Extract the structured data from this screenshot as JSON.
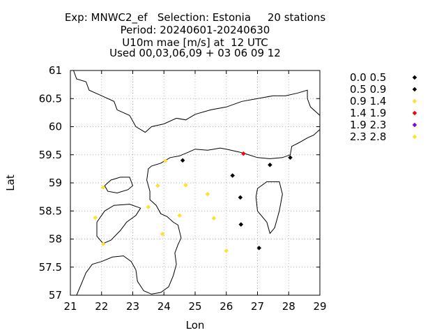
{
  "chart_data": {
    "type": "scatter",
    "title_lines": [
      "Exp: MNWC2_ef   Selection: Estonia     20 stations",
      "Period: 20240601-20240630",
      "U10m mae [m/s] at  12 UTC",
      "Used 00,03,06,09 + 03 06 09 12"
    ],
    "xlabel": "Lon",
    "ylabel": "Lat",
    "xlim": [
      21,
      29
    ],
    "ylim": [
      57,
      61
    ],
    "x_ticks": [
      "21",
      "22",
      "23",
      "24",
      "25",
      "26",
      "27",
      "28",
      "29"
    ],
    "y_ticks": [
      "57",
      "57.5",
      "58",
      "58.5",
      "59",
      "59.5",
      "60",
      "60.5",
      "61"
    ],
    "grid": true,
    "legend_position": "right",
    "legend": [
      {
        "label": "0.0 0.5",
        "color": "#000000"
      },
      {
        "label": "0.5 0.9",
        "color": "#000000"
      },
      {
        "label": "0.9 1.4",
        "color": "#ffe033"
      },
      {
        "label": "1.4 1.9",
        "color": "#ff0000"
      },
      {
        "label": "1.9 2.3",
        "color": "#9400d3"
      },
      {
        "label": "2.3 2.8",
        "color": "#ffe033"
      }
    ],
    "points": [
      {
        "x": 24.6,
        "y": 59.4,
        "cls": 1
      },
      {
        "x": 26.2,
        "y": 59.13,
        "cls": 1
      },
      {
        "x": 27.4,
        "y": 59.32,
        "cls": 1
      },
      {
        "x": 28.05,
        "y": 59.45,
        "cls": 1
      },
      {
        "x": 26.45,
        "y": 58.74,
        "cls": 1
      },
      {
        "x": 26.47,
        "y": 58.26,
        "cls": 1
      },
      {
        "x": 27.05,
        "y": 57.84,
        "cls": 1
      },
      {
        "x": 26.55,
        "y": 59.52,
        "cls": 3
      },
      {
        "x": 24.05,
        "y": 59.39,
        "cls": 2
      },
      {
        "x": 23.8,
        "y": 58.95,
        "cls": 2
      },
      {
        "x": 24.7,
        "y": 58.96,
        "cls": 2
      },
      {
        "x": 22.05,
        "y": 58.92,
        "cls": 2
      },
      {
        "x": 23.5,
        "y": 58.57,
        "cls": 2
      },
      {
        "x": 24.5,
        "y": 58.42,
        "cls": 2
      },
      {
        "x": 25.4,
        "y": 58.8,
        "cls": 2
      },
      {
        "x": 25.6,
        "y": 58.37,
        "cls": 2
      },
      {
        "x": 21.8,
        "y": 58.38,
        "cls": 2
      },
      {
        "x": 23.95,
        "y": 58.09,
        "cls": 2
      },
      {
        "x": 22.05,
        "y": 57.91,
        "cls": 2
      },
      {
        "x": 26.0,
        "y": 57.79,
        "cls": 2
      }
    ],
    "coastline": [
      [
        [
          21.1,
          61.0
        ],
        [
          21.2,
          60.85
        ],
        [
          21.5,
          60.8
        ],
        [
          21.6,
          60.65
        ],
        [
          22.0,
          60.55
        ],
        [
          22.4,
          60.45
        ],
        [
          22.5,
          60.3
        ],
        [
          22.9,
          60.2
        ],
        [
          23.1,
          60.0
        ],
        [
          23.4,
          59.9
        ],
        [
          23.6,
          60.0
        ],
        [
          24.0,
          60.05
        ],
        [
          24.4,
          60.15
        ],
        [
          24.7,
          60.12
        ],
        [
          25.0,
          60.22
        ],
        [
          25.5,
          60.3
        ],
        [
          26.0,
          60.35
        ],
        [
          26.5,
          60.45
        ],
        [
          27.0,
          60.5
        ],
        [
          27.5,
          60.55
        ],
        [
          27.9,
          60.55
        ],
        [
          28.3,
          60.6
        ],
        [
          28.6,
          60.65
        ],
        [
          28.6,
          60.5
        ],
        [
          28.7,
          60.35
        ],
        [
          29.0,
          60.2
        ]
      ],
      [
        [
          29.0,
          59.95
        ],
        [
          28.8,
          59.85
        ],
        [
          28.6,
          59.8
        ],
        [
          28.35,
          59.72
        ],
        [
          28.1,
          59.65
        ],
        [
          28.05,
          59.5
        ],
        [
          27.8,
          59.45
        ],
        [
          27.4,
          59.43
        ],
        [
          27.0,
          59.45
        ],
        [
          26.6,
          59.52
        ],
        [
          26.4,
          59.55
        ],
        [
          26.0,
          59.6
        ],
        [
          25.8,
          59.62
        ],
        [
          25.6,
          59.6
        ],
        [
          25.4,
          59.58
        ],
        [
          25.0,
          59.6
        ],
        [
          24.8,
          59.55
        ],
        [
          24.5,
          59.48
        ],
        [
          24.2,
          59.45
        ],
        [
          23.9,
          59.35
        ],
        [
          23.6,
          59.3
        ],
        [
          23.5,
          59.25
        ],
        [
          23.45,
          59.05
        ],
        [
          23.55,
          58.85
        ],
        [
          23.55,
          58.7
        ],
        [
          23.75,
          58.6
        ],
        [
          23.9,
          58.45
        ],
        [
          24.1,
          58.4
        ],
        [
          24.3,
          58.3
        ],
        [
          24.45,
          58.25
        ],
        [
          24.55,
          58.02
        ],
        [
          24.45,
          57.9
        ],
        [
          24.35,
          57.75
        ],
        [
          24.4,
          57.55
        ],
        [
          24.3,
          57.35
        ],
        [
          24.15,
          57.15
        ],
        [
          23.9,
          57.05
        ],
        [
          23.6,
          57.02
        ],
        [
          23.35,
          57.08
        ],
        [
          23.15,
          57.25
        ],
        [
          23.1,
          57.45
        ]
      ],
      [
        [
          23.1,
          57.45
        ],
        [
          22.95,
          57.6
        ],
        [
          22.7,
          57.7
        ],
        [
          22.35,
          57.68
        ],
        [
          22.0,
          57.6
        ],
        [
          21.7,
          57.55
        ],
        [
          21.5,
          57.4
        ],
        [
          21.35,
          57.2
        ],
        [
          21.2,
          57.0
        ]
      ],
      [
        [
          22.1,
          58.95
        ],
        [
          22.3,
          59.05
        ],
        [
          22.6,
          59.1
        ],
        [
          22.9,
          59.1
        ],
        [
          23.0,
          58.95
        ],
        [
          22.85,
          58.88
        ],
        [
          22.5,
          58.82
        ],
        [
          22.2,
          58.85
        ],
        [
          22.1,
          58.95
        ]
      ],
      [
        [
          21.85,
          58.3
        ],
        [
          22.1,
          58.5
        ],
        [
          22.4,
          58.6
        ],
        [
          22.9,
          58.62
        ],
        [
          23.25,
          58.55
        ],
        [
          23.1,
          58.42
        ],
        [
          22.8,
          58.3
        ],
        [
          22.6,
          58.15
        ],
        [
          22.3,
          57.98
        ],
        [
          22.05,
          57.92
        ],
        [
          21.85,
          58.05
        ],
        [
          21.85,
          58.3
        ]
      ],
      [
        [
          27.0,
          58.9
        ],
        [
          27.3,
          59.02
        ],
        [
          27.7,
          59.02
        ],
        [
          27.8,
          58.8
        ],
        [
          27.7,
          58.5
        ],
        [
          27.55,
          58.2
        ],
        [
          27.4,
          58.1
        ],
        [
          27.3,
          58.3
        ],
        [
          27.0,
          58.5
        ],
        [
          26.95,
          58.75
        ],
        [
          27.0,
          58.9
        ]
      ]
    ]
  }
}
